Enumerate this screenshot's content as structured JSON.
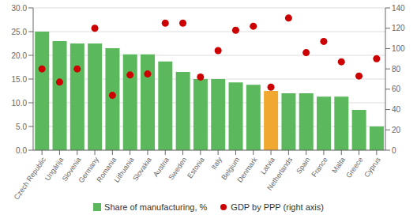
{
  "chart_data": {
    "type": "bar",
    "categories": [
      "Czech Republic",
      "Ungárija",
      "Slovenia",
      "Germany",
      "Romania",
      "Lithuania",
      "Slovakia",
      "Austria",
      "Sweden",
      "Estonia",
      "Italy",
      "Belgium",
      "Denmark",
      "Latvia",
      "Netherlands",
      "Spain",
      "France",
      "Malta",
      "Greece",
      "Cyprus"
    ],
    "series": [
      {
        "name": "Share of manufacturing, %",
        "type": "bar",
        "color": "#5cb85c",
        "colors": [
          "#5cb85c",
          "#5cb85c",
          "#5cb85c",
          "#5cb85c",
          "#5cb85c",
          "#5cb85c",
          "#5cb85c",
          "#5cb85c",
          "#5cb85c",
          "#5cb85c",
          "#5cb85c",
          "#5cb85c",
          "#5cb85c",
          "#f0a830",
          "#5cb85c",
          "#5cb85c",
          "#5cb85c",
          "#5cb85c",
          "#5cb85c",
          "#5cb85c"
        ],
        "values": [
          25.0,
          23.0,
          22.5,
          22.5,
          21.5,
          20.2,
          20.2,
          18.7,
          16.5,
          15.0,
          15.0,
          14.3,
          13.8,
          12.5,
          12.0,
          12.0,
          11.3,
          11.3,
          8.5,
          5.0
        ]
      },
      {
        "name": "GDP by PPP (right axis)",
        "type": "scatter",
        "marker": "circle",
        "color": "#cc0000",
        "axis": "y2",
        "values": [
          80,
          67,
          80,
          120,
          54,
          74,
          75,
          125,
          125,
          72,
          98,
          118,
          122,
          62,
          130,
          96,
          107,
          87,
          73,
          90
        ]
      }
    ],
    "ylim": [
      0,
      30
    ],
    "yticks": [
      {
        "value": 0,
        "label": "0.0"
      },
      {
        "value": 5,
        "label": "5.0"
      },
      {
        "value": 10,
        "label": "10.0"
      },
      {
        "value": 15,
        "label": "15.0"
      },
      {
        "value": 20,
        "label": "20.0"
      },
      {
        "value": 25,
        "label": "25.0"
      },
      {
        "value": 30,
        "label": "30.0"
      }
    ],
    "y2lim": [
      0,
      140
    ],
    "y2ticks": [
      0,
      20,
      40,
      60,
      80,
      100,
      120,
      140
    ],
    "grid": true,
    "legend": "bottom"
  }
}
